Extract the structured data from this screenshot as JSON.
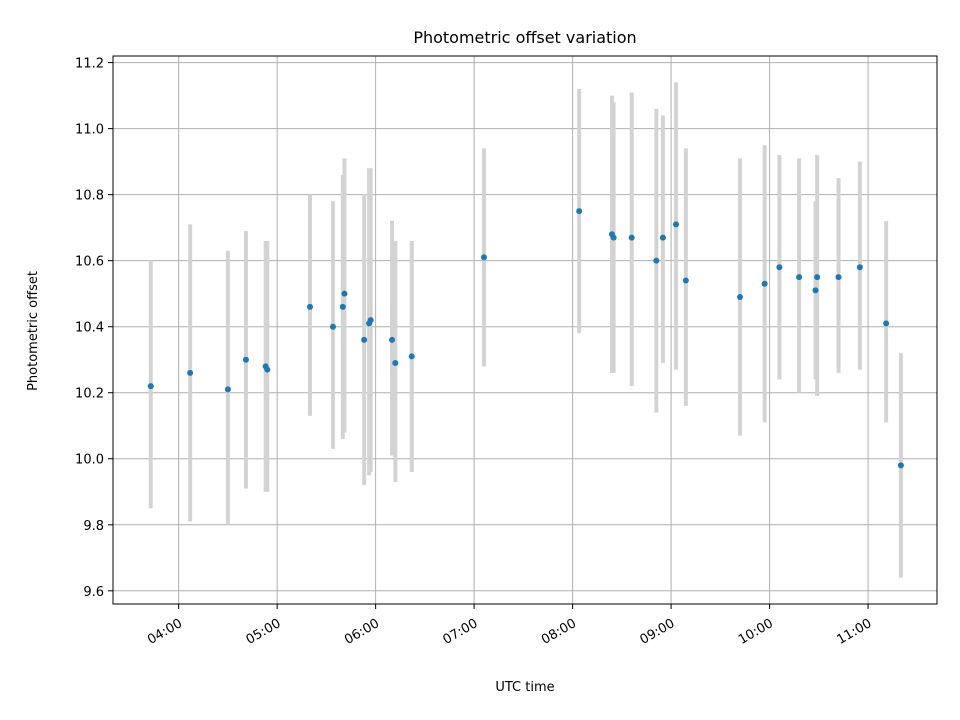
{
  "chart_data": {
    "type": "scatter",
    "title": "Photometric offset variation",
    "xlabel": "UTC time",
    "ylabel": "Photometric offset",
    "x_ticks": [
      "04:00",
      "05:00",
      "06:00",
      "07:00",
      "08:00",
      "09:00",
      "10:00",
      "11:00"
    ],
    "y_ticks": [
      "9.6",
      "9.8",
      "10.0",
      "10.2",
      "10.4",
      "10.6",
      "10.8",
      "11.0",
      "11.2"
    ],
    "xlim": [
      "03:20",
      "11:42"
    ],
    "ylim": [
      9.56,
      11.22
    ],
    "grid": true,
    "colors": {
      "points": "#1f77b4",
      "errorbars": "#d3d3d3",
      "grid": "#b0b0b0"
    },
    "points": [
      {
        "time": "03:43",
        "y": 10.22,
        "ylow": 9.85,
        "yhigh": 10.6
      },
      {
        "time": "04:07",
        "y": 10.26,
        "ylow": 9.81,
        "yhigh": 10.71
      },
      {
        "time": "04:30",
        "y": 10.21,
        "ylow": 9.8,
        "yhigh": 10.63
      },
      {
        "time": "04:41",
        "y": 10.3,
        "ylow": 9.91,
        "yhigh": 10.69
      },
      {
        "time": "04:53",
        "y": 10.28,
        "ylow": 9.9,
        "yhigh": 10.66
      },
      {
        "time": "04:54",
        "y": 10.27,
        "ylow": 9.9,
        "yhigh": 10.66
      },
      {
        "time": "05:20",
        "y": 10.46,
        "ylow": 10.13,
        "yhigh": 10.8
      },
      {
        "time": "05:34",
        "y": 10.4,
        "ylow": 10.03,
        "yhigh": 10.78
      },
      {
        "time": "05:40",
        "y": 10.46,
        "ylow": 10.06,
        "yhigh": 10.86
      },
      {
        "time": "05:41",
        "y": 10.5,
        "ylow": 10.08,
        "yhigh": 10.91
      },
      {
        "time": "05:53",
        "y": 10.36,
        "ylow": 9.92,
        "yhigh": 10.8
      },
      {
        "time": "05:56",
        "y": 10.41,
        "ylow": 9.95,
        "yhigh": 10.88
      },
      {
        "time": "05:57",
        "y": 10.42,
        "ylow": 9.96,
        "yhigh": 10.88
      },
      {
        "time": "06:10",
        "y": 10.36,
        "ylow": 10.01,
        "yhigh": 10.72
      },
      {
        "time": "06:12",
        "y": 10.29,
        "ylow": 9.93,
        "yhigh": 10.66
      },
      {
        "time": "06:22",
        "y": 10.31,
        "ylow": 9.96,
        "yhigh": 10.66
      },
      {
        "time": "07:06",
        "y": 10.61,
        "ylow": 10.28,
        "yhigh": 10.94
      },
      {
        "time": "08:04",
        "y": 10.75,
        "ylow": 10.38,
        "yhigh": 11.12
      },
      {
        "time": "08:24",
        "y": 10.68,
        "ylow": 10.26,
        "yhigh": 11.1
      },
      {
        "time": "08:25",
        "y": 10.67,
        "ylow": 10.26,
        "yhigh": 11.08
      },
      {
        "time": "08:36",
        "y": 10.67,
        "ylow": 10.22,
        "yhigh": 11.11
      },
      {
        "time": "08:51",
        "y": 10.6,
        "ylow": 10.14,
        "yhigh": 11.06
      },
      {
        "time": "08:55",
        "y": 10.67,
        "ylow": 10.29,
        "yhigh": 11.04
      },
      {
        "time": "09:03",
        "y": 10.71,
        "ylow": 10.27,
        "yhigh": 11.14
      },
      {
        "time": "09:09",
        "y": 10.54,
        "ylow": 10.16,
        "yhigh": 10.94
      },
      {
        "time": "09:42",
        "y": 10.49,
        "ylow": 10.07,
        "yhigh": 10.91
      },
      {
        "time": "09:57",
        "y": 10.53,
        "ylow": 10.11,
        "yhigh": 10.95
      },
      {
        "time": "10:06",
        "y": 10.58,
        "ylow": 10.24,
        "yhigh": 10.92
      },
      {
        "time": "10:18",
        "y": 10.55,
        "ylow": 10.2,
        "yhigh": 10.91
      },
      {
        "time": "10:28",
        "y": 10.51,
        "ylow": 10.24,
        "yhigh": 10.78
      },
      {
        "time": "10:29",
        "y": 10.55,
        "ylow": 10.19,
        "yhigh": 10.92
      },
      {
        "time": "10:42",
        "y": 10.55,
        "ylow": 10.26,
        "yhigh": 10.85
      },
      {
        "time": "10:55",
        "y": 10.58,
        "ylow": 10.27,
        "yhigh": 10.9
      },
      {
        "time": "11:11",
        "y": 10.41,
        "ylow": 10.11,
        "yhigh": 10.72
      },
      {
        "time": "11:20",
        "y": 9.98,
        "ylow": 9.64,
        "yhigh": 10.32
      }
    ]
  }
}
